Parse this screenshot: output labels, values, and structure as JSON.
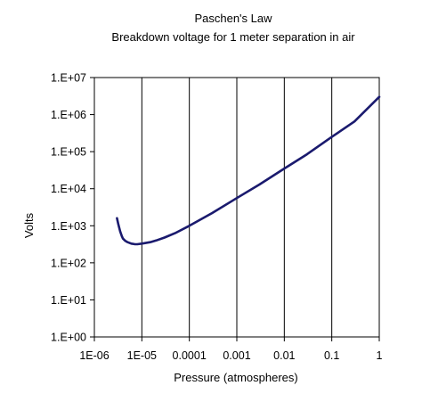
{
  "chart_data": {
    "type": "line",
    "title": "Paschen's Law",
    "subtitle": "Breakdown voltage for 1 meter separation in air",
    "xlabel": "Pressure (atmospheres)",
    "ylabel": "Volts",
    "xscale": "log",
    "yscale": "log",
    "xlim": [
      1e-06,
      1
    ],
    "ylim": [
      1,
      10000000
    ],
    "grid": "vertical major gridlines",
    "legend": "none",
    "x_ticks": [
      {
        "value": 1e-06,
        "label": "1E-06"
      },
      {
        "value": 1e-05,
        "label": "1E-05"
      },
      {
        "value": 0.0001,
        "label": "0.0001"
      },
      {
        "value": 0.001,
        "label": "0.001"
      },
      {
        "value": 0.01,
        "label": "0.01"
      },
      {
        "value": 0.1,
        "label": "0.1"
      },
      {
        "value": 1,
        "label": "1"
      }
    ],
    "y_ticks": [
      {
        "value": 1,
        "label": "1.E+00"
      },
      {
        "value": 10,
        "label": "1.E+01"
      },
      {
        "value": 100,
        "label": "1.E+02"
      },
      {
        "value": 1000,
        "label": "1.E+03"
      },
      {
        "value": 10000,
        "label": "1.E+04"
      },
      {
        "value": 100000,
        "label": "1.E+05"
      },
      {
        "value": 1000000,
        "label": "1.E+06"
      },
      {
        "value": 10000000,
        "label": "1.E+07"
      }
    ],
    "series": [
      {
        "color": "#1a1a6e",
        "x": [
          3e-06,
          3.2e-06,
          3.5e-06,
          3.8e-06,
          4e-06,
          4.5e-06,
          5e-06,
          6e-06,
          7e-06,
          8e-06,
          1e-05,
          1.5e-05,
          2e-05,
          3e-05,
          5e-05,
          0.0001,
          0.0003,
          0.001,
          0.003,
          0.01,
          0.03,
          0.1,
          0.3,
          1
        ],
        "y": [
          1600,
          1100,
          700,
          520,
          450,
          390,
          360,
          330,
          320,
          318,
          330,
          360,
          400,
          480,
          630,
          1000,
          2200,
          5600,
          13000,
          35000,
          85000,
          250000,
          650000,
          3000000
        ]
      }
    ]
  }
}
